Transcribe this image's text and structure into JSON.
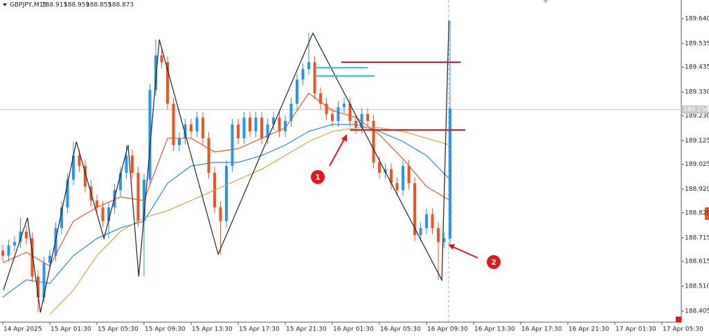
{
  "chart_data": {
    "type": "candlestick",
    "header": {
      "symbol": "GBPJPY,M15",
      "values": [
        188.915,
        188.959,
        188.855,
        188.873
      ]
    },
    "xlim": [
      -0.47,
      115.29
    ],
    "ylim": [
      188.358,
      189.719
    ],
    "xticks": [
      {
        "value": 0,
        "label": "14 Apr 2025"
      },
      {
        "value": 8,
        "label": "15 Apr 01:30"
      },
      {
        "value": 16,
        "label": "15 Apr 05:30"
      },
      {
        "value": 24,
        "label": "15 Apr 09:30"
      },
      {
        "value": 32,
        "label": "15 Apr 13:30"
      },
      {
        "value": 40,
        "label": "15 Apr 17:30"
      },
      {
        "value": 48,
        "label": "15 Apr 21:30"
      },
      {
        "value": 56,
        "label": "16 Apr 01:30"
      },
      {
        "value": 64,
        "label": "16 Apr 05:30"
      },
      {
        "value": 72,
        "label": "16 Apr 09:30"
      },
      {
        "value": 80,
        "label": "16 Apr 13:30"
      },
      {
        "value": 88,
        "label": "16 Apr 17:30"
      },
      {
        "value": 96,
        "label": "16 Apr 21:30"
      },
      {
        "value": 104,
        "label": "17 Apr 01:30"
      },
      {
        "value": 112,
        "label": "17 Apr 05:30"
      }
    ],
    "yticks": [
      {
        "value": 189.64,
        "label": "189.640"
      },
      189.535,
      189.435,
      {
        "value": 189.33,
        "label": "189.330"
      },
      {
        "value": 189.23,
        "label": "189.230"
      },
      189.125,
      189.025,
      {
        "value": 188.92,
        "label": "188.920"
      },
      {
        "value": 188.82,
        "label": "188.820"
      },
      188.715,
      188.615,
      {
        "value": 188.51,
        "label": "188.510"
      },
      188.405
    ],
    "up_color": "#2196f3",
    "down_color": "#f4511e",
    "x": [
      0,
      1,
      2,
      3,
      4,
      5,
      6,
      7,
      8,
      9,
      10,
      11,
      12,
      13,
      14,
      15,
      16,
      17,
      18,
      19,
      20,
      21,
      22,
      23,
      24,
      25,
      26,
      27,
      28,
      29,
      30,
      31,
      32,
      33,
      34,
      35,
      36,
      37,
      38,
      39,
      40,
      41,
      42,
      43,
      44,
      45,
      46,
      47,
      48,
      49,
      50,
      51,
      52,
      53,
      54,
      55,
      56,
      57,
      58,
      59,
      60,
      61,
      62,
      63,
      64,
      65,
      66,
      67,
      68,
      69,
      70,
      71,
      72,
      73,
      74,
      75,
      76
    ],
    "open": [
      188.66,
      188.639,
      188.682,
      188.697,
      188.741,
      188.712,
      188.551,
      188.463,
      188.609,
      188.639,
      188.755,
      188.843,
      188.96,
      189.062,
      189.018,
      188.931,
      188.872,
      188.843,
      188.785,
      188.843,
      188.916,
      188.989,
      189.062,
      188.989,
      188.785,
      188.96,
      189.339,
      189.485,
      189.456,
      189.281,
      189.106,
      189.135,
      189.193,
      189.164,
      189.222,
      189.135,
      188.989,
      188.843,
      188.785,
      189.018,
      189.193,
      189.135,
      189.222,
      189.164,
      189.222,
      189.135,
      189.193,
      189.222,
      189.164,
      189.208,
      189.281,
      189.383,
      189.427,
      189.456,
      189.325,
      189.281,
      189.237,
      189.208,
      189.266,
      189.281,
      189.208,
      189.179,
      189.237,
      189.208,
      189.033,
      188.989,
      189.004,
      188.945,
      188.916,
      189.018,
      188.945,
      188.726,
      188.755,
      188.814,
      188.755,
      188.697,
      188.712
    ],
    "high": [
      188.685,
      188.707,
      188.722,
      188.799,
      188.766,
      188.737,
      188.576,
      188.634,
      188.664,
      188.78,
      188.868,
      188.985,
      189.12,
      189.087,
      189.043,
      188.956,
      188.897,
      188.868,
      188.868,
      188.941,
      189.014,
      189.106,
      189.087,
      189.014,
      188.985,
      189.364,
      189.552,
      189.51,
      189.481,
      189.306,
      189.16,
      189.218,
      189.218,
      189.247,
      189.247,
      189.16,
      189.014,
      188.868,
      189.043,
      189.218,
      189.218,
      189.247,
      189.247,
      189.247,
      189.247,
      189.218,
      189.247,
      189.247,
      189.233,
      189.306,
      189.408,
      189.452,
      189.579,
      189.481,
      189.35,
      189.306,
      189.262,
      189.291,
      189.306,
      189.306,
      189.233,
      189.262,
      189.262,
      189.233,
      189.058,
      189.029,
      189.029,
      188.97,
      189.043,
      189.043,
      188.97,
      188.78,
      188.839,
      188.839,
      188.78,
      188.737,
      189.631
    ],
    "low": [
      188.614,
      188.614,
      188.657,
      188.672,
      188.687,
      188.526,
      188.399,
      188.438,
      188.584,
      188.614,
      188.73,
      188.818,
      188.935,
      188.993,
      188.906,
      188.847,
      188.818,
      188.76,
      188.712,
      188.818,
      188.891,
      188.964,
      188.964,
      188.76,
      188.551,
      188.935,
      189.314,
      189.431,
      189.256,
      189.081,
      189.081,
      189.11,
      189.139,
      189.139,
      189.11,
      188.964,
      188.818,
      188.645,
      188.76,
      188.993,
      189.11,
      189.11,
      189.139,
      189.139,
      189.11,
      189.11,
      189.168,
      189.139,
      189.139,
      189.183,
      189.256,
      189.358,
      189.402,
      189.3,
      189.256,
      189.212,
      189.183,
      189.183,
      189.241,
      189.183,
      189.154,
      189.154,
      189.183,
      189.008,
      188.964,
      188.964,
      188.92,
      188.891,
      188.891,
      188.92,
      188.701,
      188.701,
      188.73,
      188.73,
      188.536,
      188.672,
      188.687
    ],
    "close": [
      188.639,
      188.682,
      188.697,
      188.741,
      188.712,
      188.551,
      188.463,
      188.609,
      188.639,
      188.755,
      188.843,
      188.96,
      189.062,
      189.018,
      188.931,
      188.872,
      188.843,
      188.785,
      188.843,
      188.916,
      188.989,
      189.062,
      188.989,
      188.785,
      188.96,
      189.339,
      189.485,
      189.456,
      189.281,
      189.106,
      189.135,
      189.193,
      189.164,
      189.222,
      189.135,
      188.989,
      188.843,
      188.785,
      189.018,
      189.193,
      189.135,
      189.222,
      189.164,
      189.222,
      189.135,
      189.193,
      189.222,
      189.164,
      189.208,
      189.281,
      189.383,
      189.427,
      189.456,
      189.325,
      189.281,
      189.237,
      189.208,
      189.266,
      189.281,
      189.208,
      189.179,
      189.237,
      189.208,
      189.033,
      188.989,
      189.004,
      188.945,
      188.916,
      189.018,
      188.945,
      188.726,
      188.755,
      188.814,
      188.755,
      188.697,
      188.712,
      189.26
    ],
    "overlays": [
      {
        "color": "#f4511e",
        "x": [
          0,
          4,
          8,
          12,
          16,
          20,
          24,
          28,
          32,
          36,
          40,
          44,
          48,
          52,
          56,
          60,
          64,
          68,
          72,
          76
        ],
        "values": [
          188.609,
          188.653,
          188.595,
          188.785,
          188.843,
          188.887,
          188.872,
          189.135,
          189.135,
          189.077,
          189.091,
          189.135,
          189.179,
          189.325,
          189.252,
          189.223,
          189.15,
          189.048,
          188.931,
          188.872
        ]
      },
      {
        "color": "#1e88e5",
        "x": [
          0,
          4,
          8,
          12,
          16,
          20,
          24,
          28,
          32,
          36,
          40,
          44,
          48,
          52,
          56,
          60,
          64,
          68,
          72,
          76
        ],
        "values": [
          188.464,
          188.537,
          188.522,
          188.639,
          188.712,
          188.756,
          188.785,
          188.945,
          189.018,
          189.033,
          189.033,
          189.062,
          189.106,
          189.164,
          189.193,
          189.193,
          189.164,
          189.121,
          189.062,
          188.96
        ]
      },
      {
        "color": "#e0a030",
        "x": [
          8,
          12,
          16,
          20,
          24,
          28,
          32,
          36,
          40,
          44,
          48,
          52,
          56,
          60,
          64,
          68,
          72,
          76
        ],
        "values": [
          188.391,
          188.493,
          188.639,
          188.741,
          188.799,
          188.829,
          188.872,
          188.916,
          188.96,
          189.004,
          189.062,
          189.121,
          189.164,
          189.179,
          189.179,
          189.164,
          189.135,
          189.106
        ]
      },
      {
        "color": "#222222",
        "x": [
          0.1,
          4.2,
          6.4,
          12.5,
          17.2,
          21.3,
          23.1,
          26.6,
          36.6,
          52.7,
          74.6,
          75.8
        ],
        "values": [
          188.493,
          188.799,
          188.399,
          189.12,
          188.712,
          189.106,
          188.551,
          189.552,
          188.645,
          189.579,
          188.536,
          189.631
        ]
      }
    ],
    "segments": [
      {
        "color": "#e8141c",
        "x": [
          57.5,
          77.8
        ],
        "values": [
          189.456,
          189.456
        ]
      },
      {
        "color": "#e8141c",
        "x": [
          59,
          78.6
        ],
        "values": [
          189.17,
          189.17
        ]
      },
      {
        "color": "#26c6c6",
        "x": [
          53,
          62
        ],
        "values": [
          189.433,
          189.433
        ]
      },
      {
        "color": "#26c6c6",
        "x": [
          53,
          63.2
        ],
        "values": [
          189.398,
          189.398
        ]
      }
    ],
    "current_price": 189.256,
    "annotations": [
      "1",
      "2"
    ]
  }
}
